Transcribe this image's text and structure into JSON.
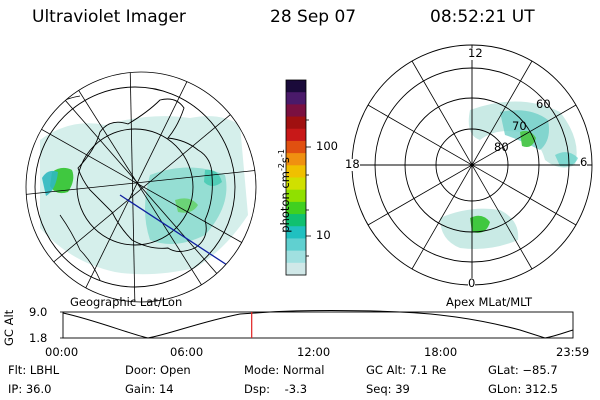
{
  "header": {
    "instrument": "Ultraviolet Imager",
    "date": "28 Sep 07",
    "time": "08:52:21 UT"
  },
  "left_panel": {
    "label": "Geographic Lat/Lon",
    "projection": "polar geographic map with continent outline and lat/lon grid"
  },
  "right_panel": {
    "label": "Apex MLat/MLT",
    "mlt_labels": {
      "top": "12",
      "left": "18",
      "right": "6",
      "bottom": "0"
    },
    "mlat_labels": [
      "60",
      "70",
      "80"
    ]
  },
  "colorbar": {
    "unit_label": "photon cm",
    "unit_exp1": "-2",
    "unit_mid": "s",
    "unit_exp2": "-1",
    "tick_labels": [
      "100",
      "10"
    ],
    "colors": [
      "#1a0a3a",
      "#4a1a6a",
      "#7a1040",
      "#a01010",
      "#c81818",
      "#e05010",
      "#f09010",
      "#f0c000",
      "#d0e000",
      "#90e000",
      "#40d020",
      "#10c070",
      "#20c0c0",
      "#60d0d0",
      "#a0e0e0",
      "#d0e8e8"
    ]
  },
  "timeline": {
    "ylabel": "GC Alt",
    "y_ticks": [
      "9.0",
      "1.8"
    ],
    "x_ticks": [
      "00:00",
      "06:00",
      "12:00",
      "18:00",
      "23:59"
    ],
    "current_time_marker": "08:52:21",
    "current_time_fraction": 0.37
  },
  "status": {
    "flt": "Flt: LBHL",
    "ip": "IP: 36.0",
    "door": "Door: Open",
    "gain": "Gain: 14",
    "mode": "Mode: Normal",
    "dsp": "Dsp:    -3.3",
    "gc_alt": "GC Alt: 7.1 Re",
    "seq": "Seq: 39",
    "glat": "GLat: −85.7",
    "glon": "GLon: 312.5"
  },
  "colors": {
    "marker": "#e02020",
    "line": "#000000"
  }
}
